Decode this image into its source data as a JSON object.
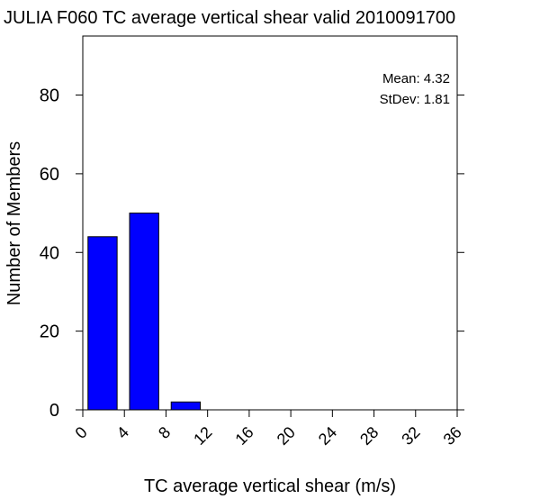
{
  "chart_data": {
    "type": "bar",
    "title": "JULIA F060 TC average vertical shear valid 2010091700",
    "xlabel": "TC average vertical shear (m/s)",
    "ylabel": "Number of Members",
    "xlim": [
      0,
      36
    ],
    "ylim": [
      0,
      95
    ],
    "x_ticks": [
      "0",
      "4",
      "8",
      "12",
      "16",
      "20",
      "24",
      "28",
      "32",
      "36"
    ],
    "y_ticks": [
      "0",
      "20",
      "40",
      "60",
      "80"
    ],
    "bars": [
      {
        "x0": 0.5,
        "x1": 3.3,
        "value": 44
      },
      {
        "x0": 4.5,
        "x1": 7.3,
        "value": 50
      },
      {
        "x0": 8.5,
        "x1": 11.3,
        "value": 2
      }
    ],
    "bar_color": "#0000ff",
    "stats": {
      "mean_label": "Mean: 4.32",
      "stdev_label": "StDev: 1.81"
    }
  }
}
